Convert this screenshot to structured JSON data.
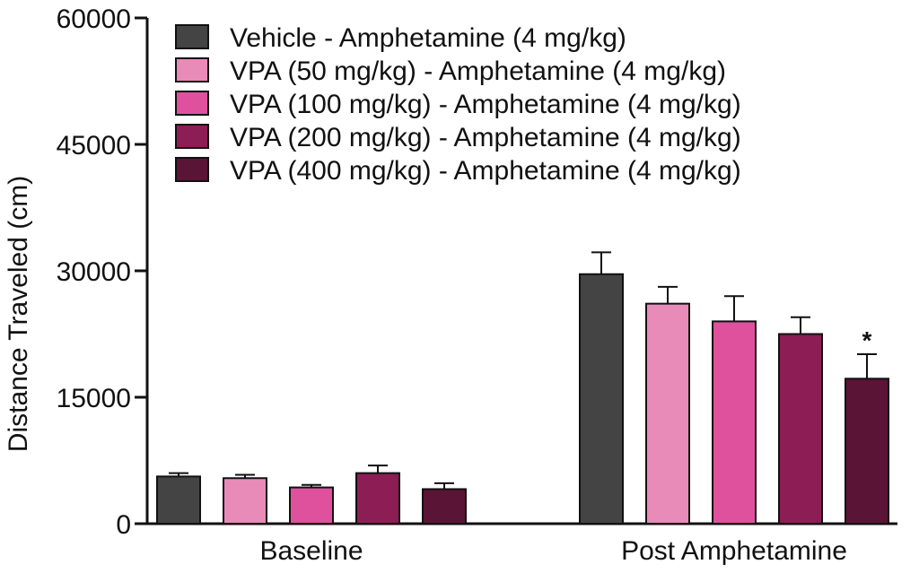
{
  "chart_data": {
    "type": "bar",
    "categories": [
      "Baseline",
      "Post  Amphetamine"
    ],
    "series": [
      {
        "name": "Vehicle - Amphetamine (4 mg/kg)",
        "color": "#444444",
        "values": [
          5600,
          29600
        ],
        "errors": [
          400,
          2600
        ]
      },
      {
        "name": "VPA (50 mg/kg) - Amphetamine (4 mg/kg)",
        "color": "#e88bb8",
        "values": [
          5400,
          26100
        ],
        "errors": [
          400,
          2000
        ]
      },
      {
        "name": "VPA (100 mg/kg) - Amphetamine (4 mg/kg)",
        "color": "#df519d",
        "values": [
          4300,
          24000
        ],
        "errors": [
          300,
          3000
        ]
      },
      {
        "name": "VPA (200 mg/kg) - Amphetamine (4 mg/kg)",
        "color": "#8d1d55",
        "values": [
          6000,
          22500
        ],
        "errors": [
          900,
          2000
        ]
      },
      {
        "name": "VPA (400 mg/kg)  - Amphetamine (4 mg/kg)",
        "color": "#5a1436",
        "values": [
          4100,
          17200
        ],
        "errors": [
          700,
          2900
        ]
      }
    ],
    "xlabel": "",
    "ylabel": "Distance  Traveled  (cm)",
    "ylim": [
      0,
      60000
    ],
    "yticks": [
      "0",
      "15000",
      "30000",
      "45000",
      "60000"
    ],
    "grid": false,
    "legend_position": "top",
    "annotations": [
      {
        "category": "Post  Amphetamine",
        "series_index": 4,
        "text": "*"
      }
    ]
  }
}
